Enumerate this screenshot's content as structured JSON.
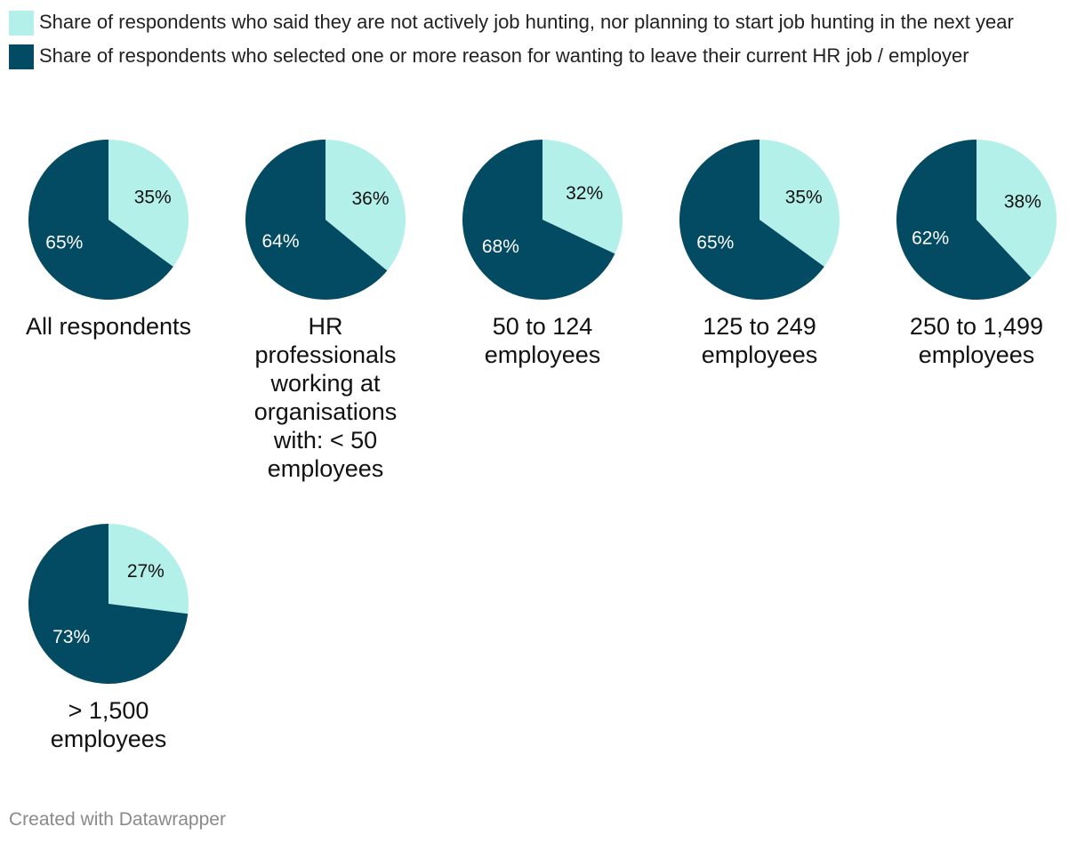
{
  "legend": {
    "items": [
      {
        "label": "Share of respondents who said they are not actively job hunting, nor planning to start job hunting in the next year",
        "color": "#b4f0ea"
      },
      {
        "label": "Share of respondents who selected one or more reason for wanting to leave their current HR job / employer",
        "color": "#034a63"
      }
    ]
  },
  "chart_data": {
    "type": "pie",
    "series_names": [
      "Share of respondents who said they are not actively job hunting, nor planning to start job hunting in the next year",
      "Share of respondents who selected one or more reason for wanting to leave their current HR job / employer"
    ],
    "pies": [
      {
        "title": "All respondents",
        "values": [
          35,
          65
        ],
        "labels": [
          "35%",
          "65%"
        ]
      },
      {
        "title": "HR professionals working at organisations with: < 50 employees",
        "values": [
          36,
          64
        ],
        "labels": [
          "36%",
          "64%"
        ]
      },
      {
        "title": "50 to 124 employees",
        "values": [
          32,
          68
        ],
        "labels": [
          "32%",
          "68%"
        ]
      },
      {
        "title": "125 to 249 employees",
        "values": [
          35,
          65
        ],
        "labels": [
          "35%",
          "65%"
        ]
      },
      {
        "title": "250 to 1,499 employees",
        "values": [
          38,
          62
        ],
        "labels": [
          "38%",
          "62%"
        ]
      },
      {
        "title": "> 1,500 employees",
        "values": [
          27,
          73
        ],
        "labels": [
          "27%",
          "73%"
        ]
      }
    ]
  },
  "footer": {
    "credit": "Created with Datawrapper"
  }
}
